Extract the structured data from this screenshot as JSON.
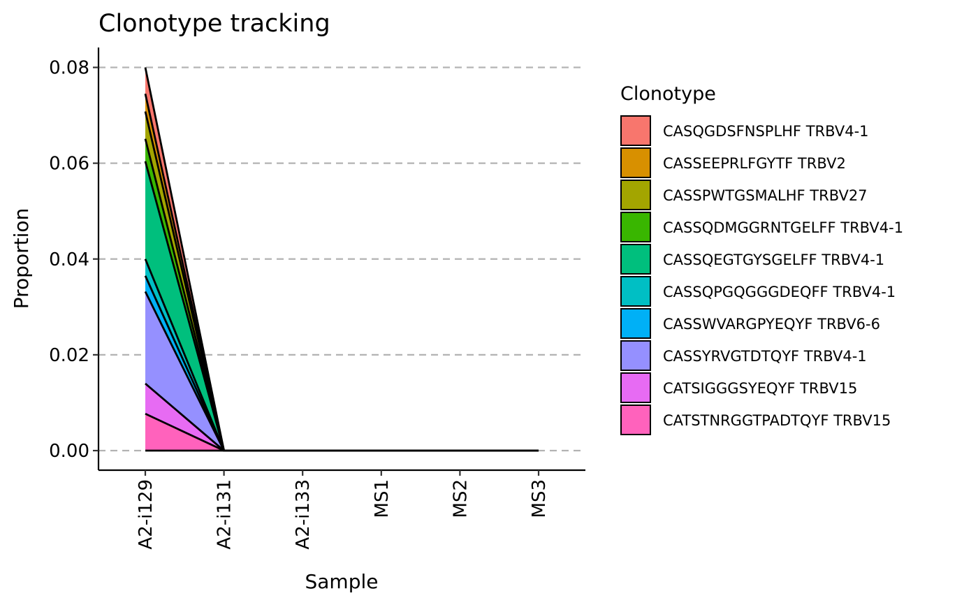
{
  "chart_data": {
    "type": "area",
    "title": "Clonotype tracking",
    "xlabel": "Sample",
    "ylabel": "Proportion",
    "categories": [
      "A2-i129",
      "A2-i131",
      "A2-i133",
      "MS1",
      "MS2",
      "MS3"
    ],
    "ylim": [
      -0.004,
      0.084
    ],
    "yticks": [
      0.0,
      0.02,
      0.04,
      0.06,
      0.08
    ],
    "ytick_labels": [
      "0.00",
      "0.02",
      "0.04",
      "0.06",
      "0.08"
    ],
    "grid": "horizontal dashed",
    "stacked": true,
    "legend_title": "Clonotype",
    "legend_position": "right",
    "series": [
      {
        "name": "CASQGDSFNSPLHF TRBV4-1",
        "color": "#F8766D",
        "values": [
          0.0055,
          0,
          0,
          0,
          0,
          0
        ]
      },
      {
        "name": "CASSEEPRLFGYTF TRBV2",
        "color": "#D89000",
        "values": [
          0.0037,
          0,
          0,
          0,
          0,
          0
        ]
      },
      {
        "name": "CASSPWTGSMALHF TRBV27",
        "color": "#A3A500",
        "values": [
          0.0057,
          0,
          0,
          0,
          0,
          0
        ]
      },
      {
        "name": "CASSQDMGGRNTGELFF TRBV4-1",
        "color": "#39B600",
        "values": [
          0.0047,
          0,
          0,
          0,
          0,
          0
        ]
      },
      {
        "name": "CASSQEGTGYSGELFF TRBV4-1",
        "color": "#00BF7D",
        "values": [
          0.0204,
          0,
          0,
          0,
          0,
          0
        ]
      },
      {
        "name": "CASSQPGQGGGDEQFF TRBV4-1",
        "color": "#00BFC4",
        "values": [
          0.0035,
          0,
          0,
          0,
          0,
          0
        ]
      },
      {
        "name": "CASSWVARGPYEQYF TRBV6-6",
        "color": "#00B0F6",
        "values": [
          0.0033,
          0,
          0,
          0,
          0,
          0
        ]
      },
      {
        "name": "CASSYRVGTDTQYF TRBV4-1",
        "color": "#9590FF",
        "values": [
          0.0192,
          0,
          0,
          0,
          0,
          0
        ]
      },
      {
        "name": "CATSIGGGSYEQYF TRBV15",
        "color": "#E76BF3",
        "values": [
          0.0063,
          0,
          0,
          0,
          0,
          0
        ]
      },
      {
        "name": "CATSTNRGGTPADTQYF TRBV15",
        "color": "#FF62BC",
        "values": [
          0.0077,
          0,
          0,
          0,
          0,
          0
        ]
      }
    ]
  }
}
